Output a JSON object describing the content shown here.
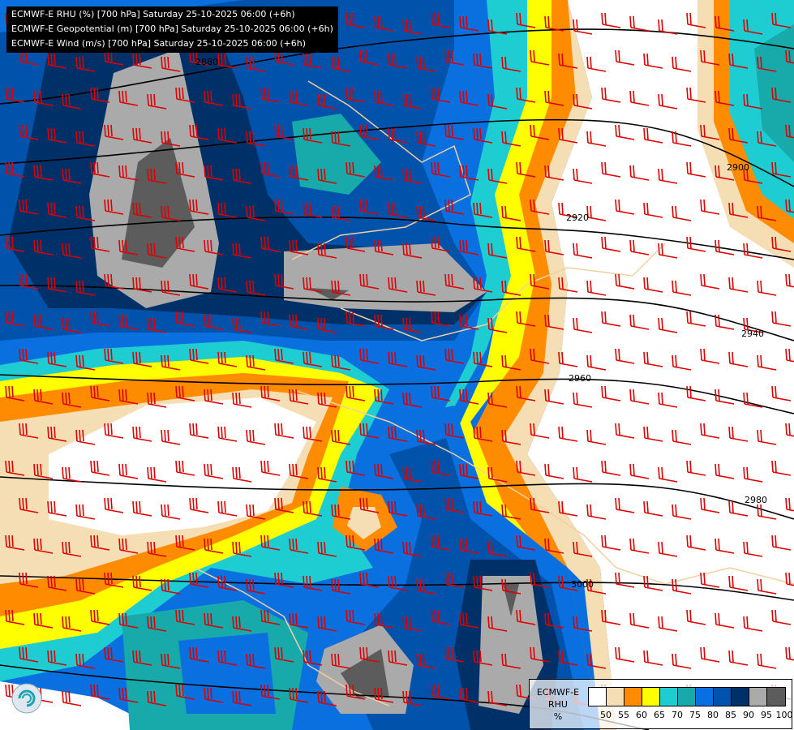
{
  "titles": [
    "ECMWF-E RHU (%) [700 hPa] Saturday 25-10-2025 06:00 (+6h)",
    "ECMWF-E Geopotential (m) [700 hPa] Saturday 25-10-2025 06:00 (+6h)",
    "ECMWF-E Wind (m/s) [700 hPa] Saturday 25-10-2025 06:00 (+6h)"
  ],
  "legend": {
    "title_line1": "ECMWF-E",
    "title_line2": "RHU",
    "unit": "%",
    "colors": [
      "#ffffff",
      "#f5deb3",
      "#ff8c00",
      "#ffff00",
      "#1ecdd2",
      "#18a9aa",
      "#0a70e0",
      "#0052aa",
      "#003068",
      "#aaaaaa",
      "#5c5c5c"
    ],
    "ticks": [
      "50",
      "55",
      "60",
      "65",
      "70",
      "75",
      "80",
      "85",
      "90",
      "95",
      "100"
    ]
  },
  "contours": [
    "2880",
    "2900",
    "2920",
    "2940",
    "2960",
    "2980",
    "3000"
  ],
  "wind_barb_color": "#dd0000",
  "contour_color": "#000000",
  "border_color": "#f0d0a0"
}
